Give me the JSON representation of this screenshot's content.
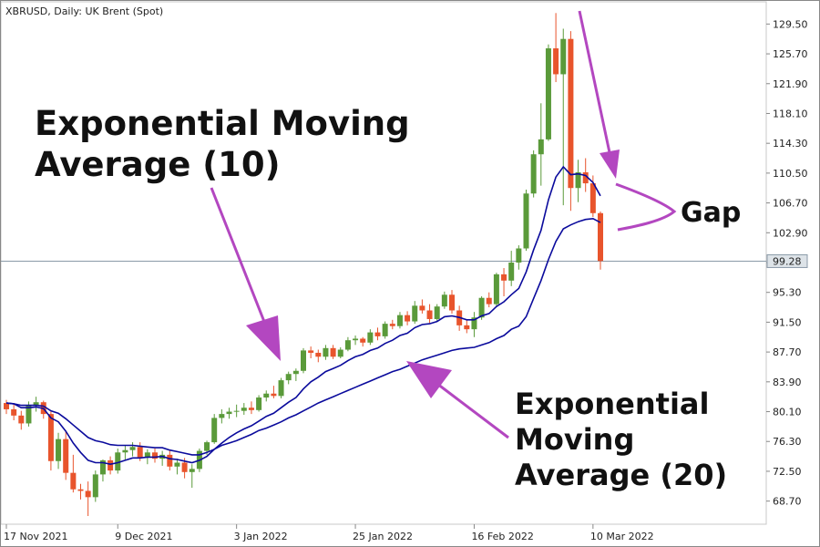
{
  "chart_data": {
    "type": "candlestick",
    "title": "XBRUSD, Daily:  UK Brent (Spot)",
    "ylim": [
      66.8,
      131.4
    ],
    "y_ticks": [
      "129.50",
      "125.70",
      "121.90",
      "118.10",
      "114.30",
      "110.50",
      "106.70",
      "102.90",
      "99.10",
      "95.30",
      "91.50",
      "87.70",
      "83.90",
      "80.10",
      "76.30",
      "72.50",
      "68.70"
    ],
    "x_ticks": [
      {
        "index": 0,
        "label": "17 Nov 2021"
      },
      {
        "index": 15,
        "label": "9 Dec 2021"
      },
      {
        "index": 31,
        "label": "3 Jan 2022"
      },
      {
        "index": 47,
        "label": "25 Jan 2022"
      },
      {
        "index": 63,
        "label": "16 Feb 2022"
      },
      {
        "index": 79,
        "label": "10 Mar 2022"
      }
    ],
    "current_price": "99.28",
    "colors": {
      "up": "#5a9a3a",
      "down": "#e8542c",
      "ema": "#0a0a9c",
      "annotation": "#b347c0",
      "price_line": "#8a9aa8"
    },
    "candles": [
      [
        81.2,
        81.6,
        79.8,
        80.4
      ],
      [
        80.4,
        81.0,
        79.0,
        79.6
      ],
      [
        79.6,
        80.2,
        77.8,
        78.6
      ],
      [
        78.6,
        81.4,
        78.2,
        80.9
      ],
      [
        80.9,
        82.0,
        80.1,
        81.3
      ],
      [
        81.3,
        81.5,
        79.2,
        79.8
      ],
      [
        79.8,
        80.1,
        72.6,
        73.8
      ],
      [
        73.8,
        77.4,
        72.8,
        76.6
      ],
      [
        76.6,
        77.6,
        71.4,
        72.3
      ],
      [
        72.3,
        74.6,
        69.8,
        70.2
      ],
      [
        70.2,
        70.9,
        68.9,
        70.0
      ],
      [
        70.0,
        71.2,
        66.8,
        69.2
      ],
      [
        69.2,
        72.6,
        68.6,
        72.1
      ],
      [
        72.1,
        74.0,
        71.2,
        73.9
      ],
      [
        73.9,
        74.4,
        72.1,
        72.6
      ],
      [
        72.6,
        75.4,
        72.2,
        74.9
      ],
      [
        74.9,
        75.8,
        74.0,
        75.2
      ],
      [
        75.2,
        76.2,
        74.4,
        75.6
      ],
      [
        75.6,
        76.2,
        73.8,
        74.3
      ],
      [
        74.3,
        75.3,
        73.4,
        74.9
      ],
      [
        74.9,
        75.4,
        73.6,
        74.1
      ],
      [
        74.1,
        75.1,
        73.2,
        74.6
      ],
      [
        74.6,
        75.2,
        72.6,
        73.1
      ],
      [
        73.1,
        74.1,
        72.1,
        73.6
      ],
      [
        73.6,
        74.2,
        71.6,
        72.4
      ],
      [
        72.4,
        73.4,
        70.4,
        72.8
      ],
      [
        72.8,
        75.4,
        72.4,
        75.1
      ],
      [
        75.1,
        76.4,
        74.6,
        76.2
      ],
      [
        76.2,
        79.8,
        76.0,
        79.3
      ],
      [
        79.3,
        80.4,
        78.6,
        79.8
      ],
      [
        79.8,
        80.6,
        79.2,
        80.1
      ],
      [
        80.1,
        81.0,
        79.4,
        80.2
      ],
      [
        80.2,
        81.2,
        79.7,
        80.6
      ],
      [
        80.6,
        81.4,
        79.8,
        80.3
      ],
      [
        80.3,
        82.2,
        80.1,
        81.9
      ],
      [
        81.9,
        82.8,
        81.4,
        82.4
      ],
      [
        82.4,
        83.4,
        81.8,
        82.1
      ],
      [
        82.1,
        84.4,
        81.8,
        84.1
      ],
      [
        84.1,
        85.2,
        83.6,
        84.9
      ],
      [
        84.9,
        85.6,
        84.0,
        85.3
      ],
      [
        85.3,
        88.2,
        85.0,
        87.9
      ],
      [
        87.9,
        88.4,
        86.9,
        87.6
      ],
      [
        87.6,
        88.0,
        86.4,
        87.1
      ],
      [
        87.1,
        88.6,
        86.7,
        88.2
      ],
      [
        88.2,
        88.6,
        86.8,
        87.1
      ],
      [
        87.1,
        88.3,
        86.9,
        88.0
      ],
      [
        88.0,
        89.6,
        87.8,
        89.2
      ],
      [
        89.2,
        89.8,
        88.6,
        89.4
      ],
      [
        89.4,
        89.6,
        88.4,
        88.9
      ],
      [
        88.9,
        90.6,
        88.6,
        90.2
      ],
      [
        90.2,
        90.8,
        89.2,
        89.7
      ],
      [
        89.7,
        91.6,
        89.4,
        91.3
      ],
      [
        91.3,
        91.8,
        90.6,
        91.0
      ],
      [
        91.0,
        92.8,
        90.7,
        92.4
      ],
      [
        92.4,
        92.9,
        91.1,
        91.6
      ],
      [
        91.6,
        94.2,
        91.3,
        93.6
      ],
      [
        93.6,
        94.4,
        92.6,
        93.0
      ],
      [
        93.0,
        93.8,
        91.4,
        91.9
      ],
      [
        91.9,
        93.8,
        91.6,
        93.5
      ],
      [
        93.5,
        95.4,
        93.2,
        95.0
      ],
      [
        95.0,
        95.6,
        92.6,
        93.0
      ],
      [
        93.0,
        93.6,
        90.4,
        91.1
      ],
      [
        91.1,
        91.8,
        90.1,
        90.6
      ],
      [
        90.6,
        92.8,
        89.6,
        92.1
      ],
      [
        92.1,
        94.8,
        91.8,
        94.6
      ],
      [
        94.6,
        95.3,
        93.4,
        93.8
      ],
      [
        93.8,
        97.8,
        93.4,
        97.6
      ],
      [
        97.6,
        98.4,
        94.8,
        96.8
      ],
      [
        96.8,
        100.6,
        96.1,
        99.1
      ],
      [
        99.1,
        101.3,
        98.2,
        100.9
      ],
      [
        100.9,
        108.4,
        100.6,
        107.9
      ],
      [
        107.9,
        113.4,
        107.4,
        112.9
      ],
      [
        112.9,
        119.4,
        108.9,
        114.8
      ],
      [
        114.8,
        126.9,
        114.6,
        126.4
      ],
      [
        126.4,
        130.9,
        122.1,
        123.1
      ],
      [
        123.1,
        128.9,
        106.4,
        127.6
      ],
      [
        127.6,
        128.6,
        105.7,
        108.6
      ],
      [
        108.6,
        112.2,
        106.8,
        110.6
      ],
      [
        110.6,
        112.4,
        108.1,
        109.2
      ],
      [
        109.2,
        110.2,
        104.9,
        105.4
      ],
      [
        105.4,
        105.6,
        98.2,
        99.3
      ]
    ],
    "series": [
      {
        "name": "Exponential Moving Average (10)",
        "values": [
          81.2,
          81.1,
          80.6,
          80.6,
          80.7,
          80.5,
          79.3,
          78.8,
          77.6,
          76.1,
          74.9,
          73.9,
          73.6,
          73.6,
          73.4,
          73.6,
          73.9,
          74.2,
          74.2,
          74.3,
          74.3,
          74.4,
          74.1,
          74.0,
          73.8,
          73.6,
          73.9,
          74.4,
          75.3,
          76.1,
          76.8,
          77.4,
          77.9,
          78.3,
          78.9,
          79.5,
          79.9,
          80.6,
          81.3,
          81.9,
          83.0,
          83.9,
          84.5,
          85.2,
          85.6,
          86.0,
          86.6,
          87.1,
          87.4,
          87.9,
          88.2,
          88.8,
          89.2,
          89.8,
          90.1,
          90.8,
          91.2,
          91.3,
          91.6,
          92.2,
          92.3,
          92.1,
          91.8,
          91.8,
          92.3,
          92.6,
          93.5,
          94.1,
          95.0,
          95.8,
          97.9,
          100.7,
          103.2,
          107.1,
          110.0,
          111.3,
          110.3,
          110.4,
          110.2,
          109.3,
          107.6
        ]
      },
      {
        "name": "Exponential Moving Average (20)",
        "values": [
          81.2,
          81.1,
          80.9,
          80.9,
          80.9,
          80.8,
          80.2,
          79.9,
          79.2,
          78.4,
          77.6,
          76.8,
          76.4,
          76.2,
          75.9,
          75.8,
          75.8,
          75.8,
          75.7,
          75.6,
          75.5,
          75.5,
          75.2,
          75.0,
          74.8,
          74.6,
          74.6,
          74.9,
          75.3,
          75.8,
          76.1,
          76.4,
          76.8,
          77.2,
          77.7,
          78.0,
          78.4,
          78.8,
          79.3,
          79.7,
          80.2,
          80.7,
          81.2,
          81.6,
          82.0,
          82.4,
          82.8,
          83.2,
          83.6,
          84.0,
          84.4,
          84.8,
          85.2,
          85.5,
          85.9,
          86.3,
          86.7,
          87.0,
          87.3,
          87.6,
          87.9,
          88.1,
          88.2,
          88.3,
          88.6,
          88.9,
          89.4,
          89.8,
          90.6,
          91.0,
          92.2,
          94.5,
          96.8,
          99.5,
          101.8,
          103.4,
          103.9,
          104.3,
          104.6,
          104.7,
          104.2
        ]
      }
    ]
  },
  "annotations": {
    "ema10_label_line1": "Exponential Moving",
    "ema10_label_line2": "Average (10)",
    "ema20_label_line1": "Exponential",
    "ema20_label_line2": "Moving",
    "ema20_label_line3": "Average (20)",
    "gap_label": "Gap"
  }
}
